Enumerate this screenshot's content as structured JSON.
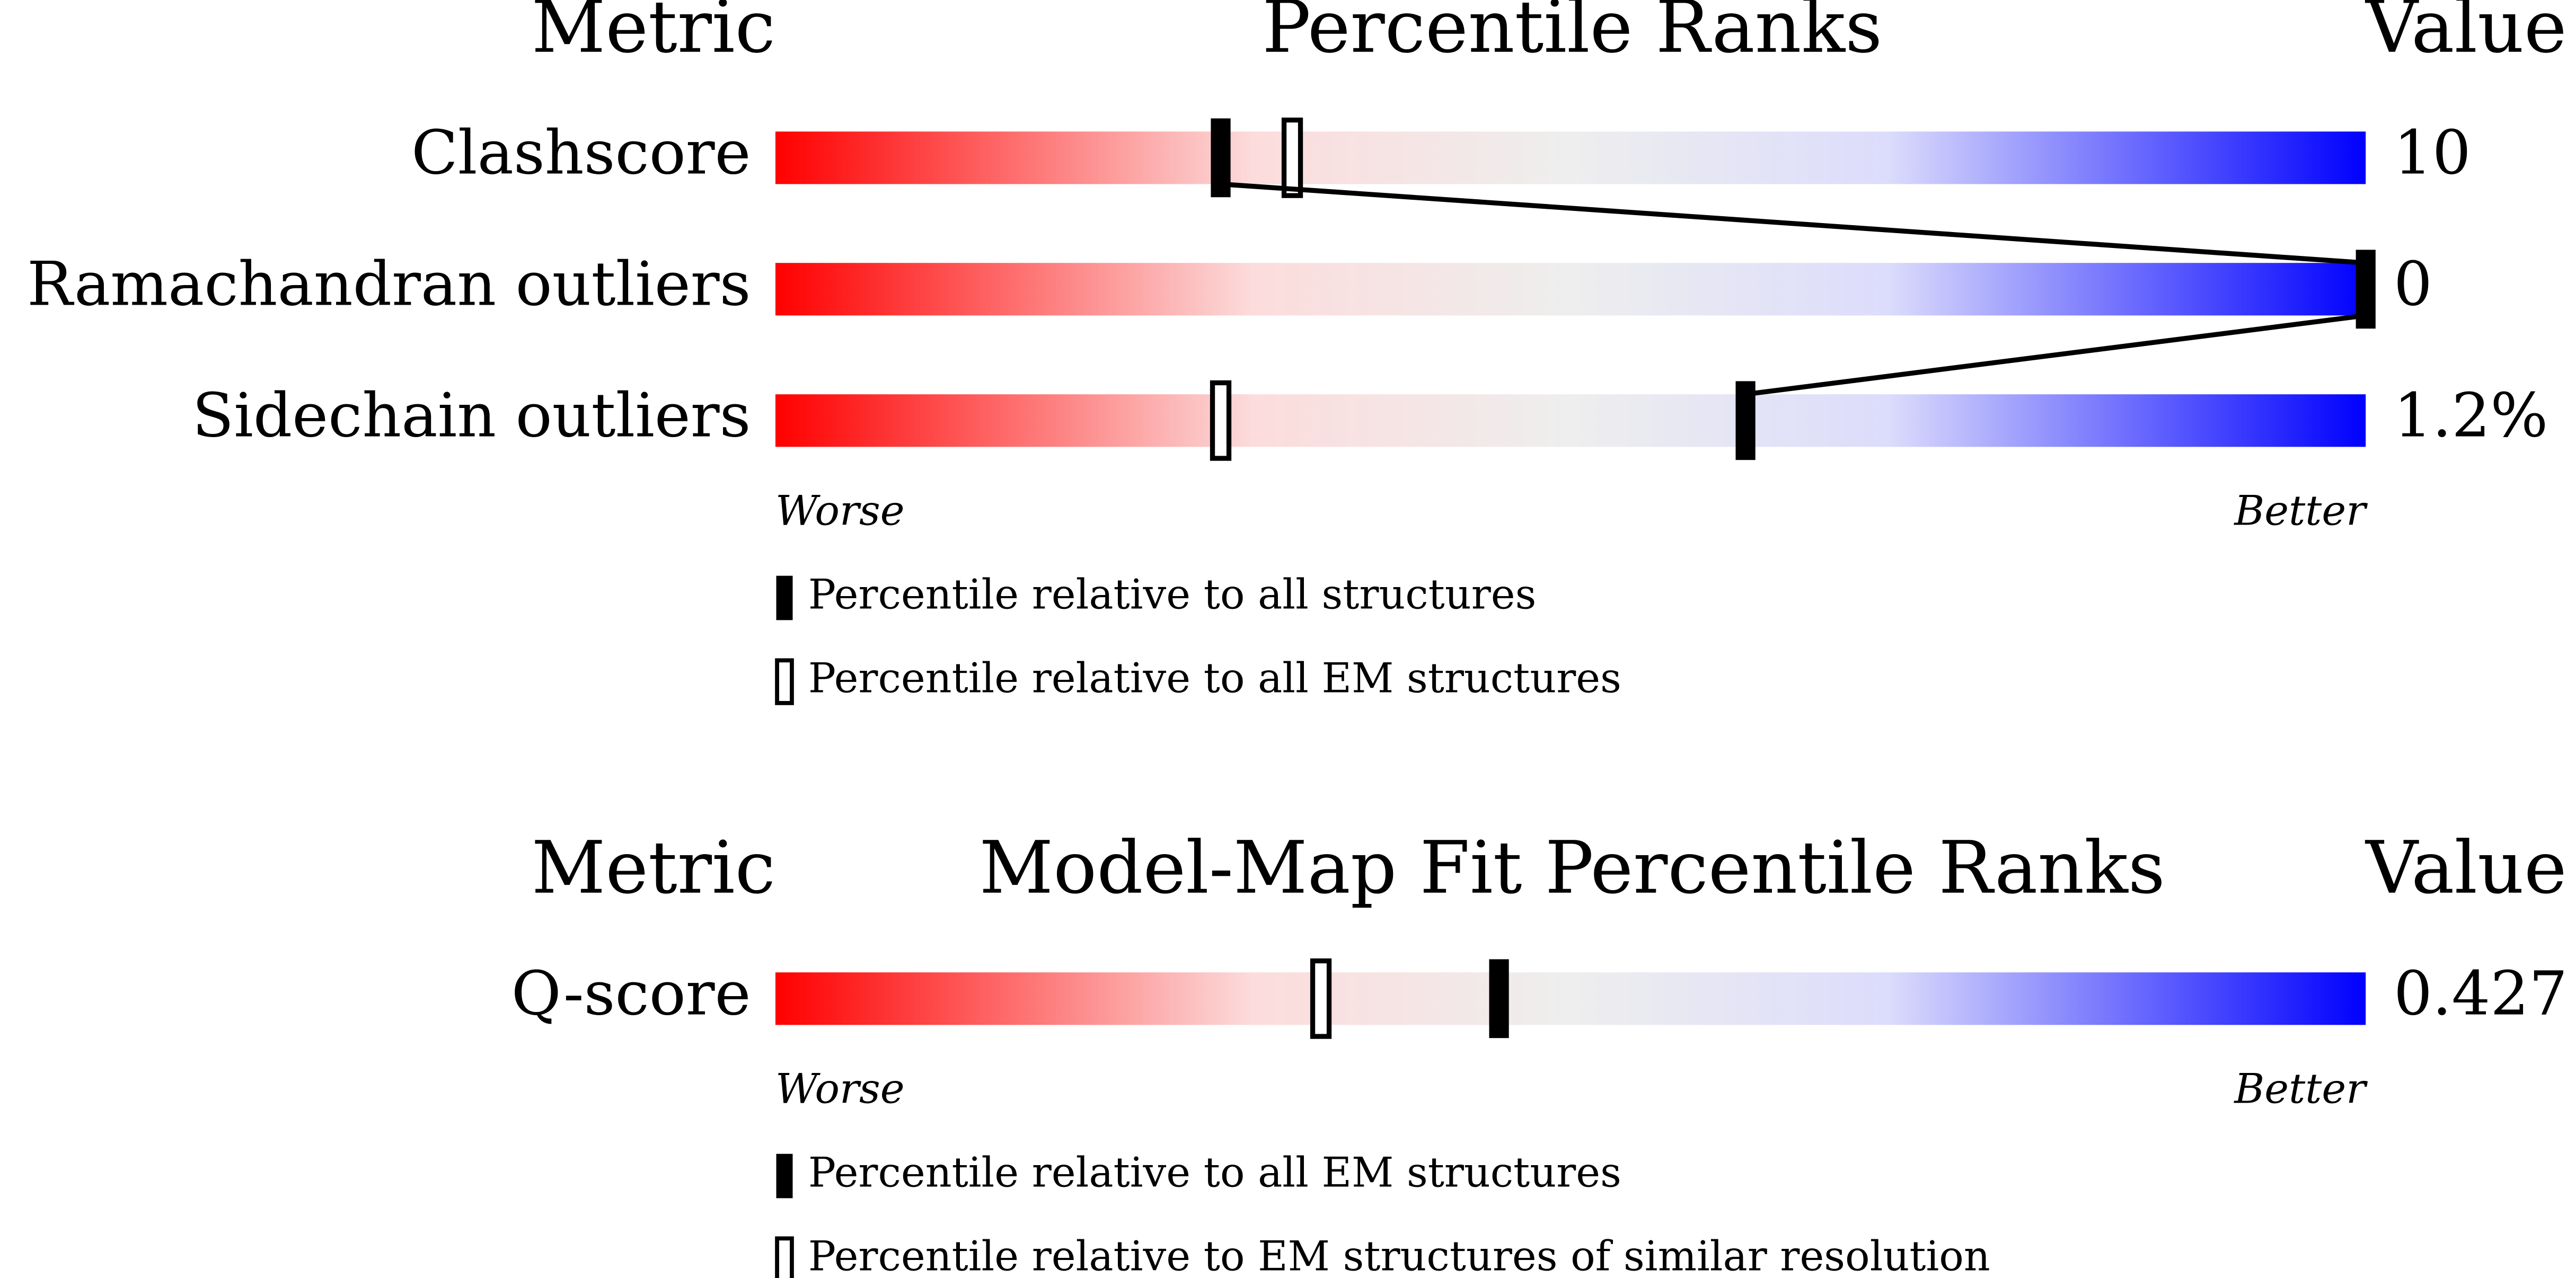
{
  "panels": [
    {
      "headers": {
        "metric": "Metric",
        "title": "Percentile Ranks",
        "value": "Value"
      },
      "xlim": [
        0,
        100
      ],
      "rows": [
        {
          "metric": "Clashscore",
          "value": "10",
          "percentiles": [
            28,
            32.5
          ]
        },
        {
          "metric": "Ramachandran outliers",
          "value": "0",
          "percentiles": [
            100,
            null
          ]
        },
        {
          "metric": "Sidechain outliers",
          "value": "1.2%",
          "percentiles": [
            61,
            28
          ]
        }
      ],
      "worse": "Worse",
      "better": "Better",
      "legend": [
        "Percentile relative to all structures",
        "Percentile relative to all EM structures"
      ]
    },
    {
      "headers": {
        "metric": "Metric",
        "title": "Model-Map Fit Percentile Ranks",
        "value": "Value"
      },
      "xlim": [
        0,
        100
      ],
      "rows": [
        {
          "metric": "Q-score",
          "value": "0.427",
          "percentiles": [
            45.5,
            34.3
          ]
        }
      ],
      "worse": "Worse",
      "better": "Better",
      "legend": [
        "Percentile relative to all EM structures",
        "Percentile relative to EM structures of similar resolution"
      ]
    }
  ]
}
